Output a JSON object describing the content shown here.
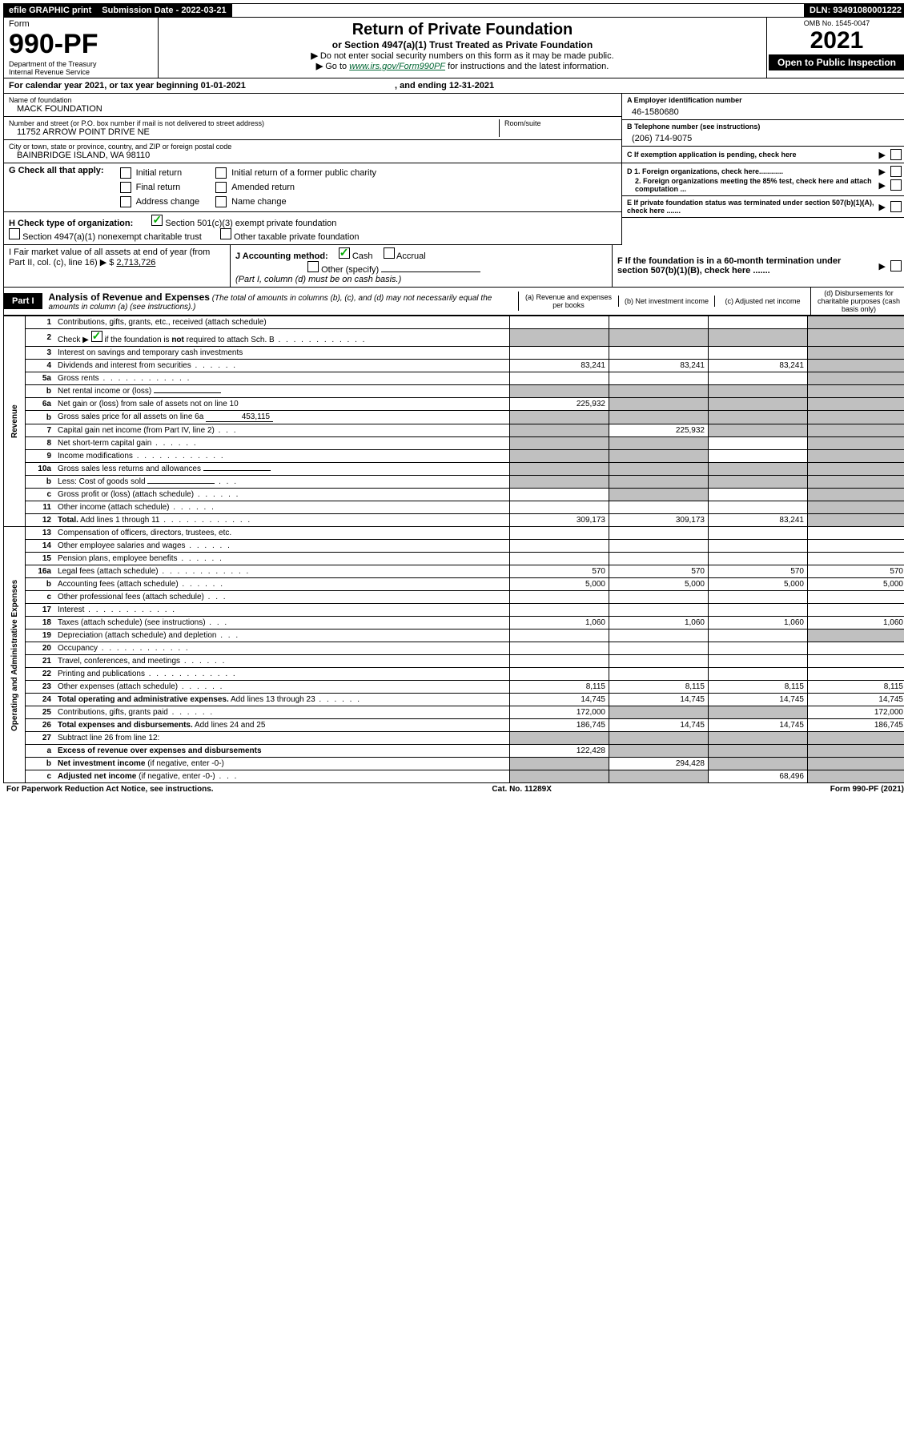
{
  "topbar": {
    "efile": "efile GRAPHIC print",
    "submission_label": "Submission Date - 2022-03-21",
    "dln": "DLN: 93491080001222"
  },
  "header": {
    "form_word": "Form",
    "form_number": "990-PF",
    "dept": "Department of the Treasury",
    "irs": "Internal Revenue Service",
    "title": "Return of Private Foundation",
    "subtitle": "or Section 4947(a)(1) Trust Treated as Private Foundation",
    "note1": "Do not enter social security numbers on this form as it may be made public.",
    "note2_pre": "Go to ",
    "note2_link": "www.irs.gov/Form990PF",
    "note2_post": " for instructions and the latest information.",
    "omb": "OMB No. 1545-0047",
    "year": "2021",
    "open": "Open to Public Inspection"
  },
  "calyear": "For calendar year 2021, or tax year beginning 01-01-2021",
  "calyear_end": ", and ending 12-31-2021",
  "foundation": {
    "name_label": "Name of foundation",
    "name": "MACK FOUNDATION",
    "addr_label": "Number and street (or P.O. box number if mail is not delivered to street address)",
    "room_label": "Room/suite",
    "addr": "11752 ARROW POINT DRIVE NE",
    "city_label": "City or town, state or province, country, and ZIP or foreign postal code",
    "city": "BAINBRIDGE ISLAND, WA  98110"
  },
  "right_info": {
    "a_label": "A Employer identification number",
    "a_val": "46-1580680",
    "b_label": "B Telephone number (see instructions)",
    "b_val": "(206) 714-9075",
    "c_label": "C If exemption application is pending, check here",
    "d1": "D 1. Foreign organizations, check here............",
    "d2": "2. Foreign organizations meeting the 85% test, check here and attach computation ...",
    "e": "E  If private foundation status was terminated under section 507(b)(1)(A), check here .......",
    "f": "F  If the foundation is in a 60-month termination under section 507(b)(1)(B), check here .......",
    "arrow": "▶"
  },
  "section_g": {
    "label": "G Check all that apply:",
    "opts": [
      "Initial return",
      "Final return",
      "Address change",
      "Initial return of a former public charity",
      "Amended return",
      "Name change"
    ]
  },
  "section_h": {
    "label": "H Check type of organization:",
    "opt1": "Section 501(c)(3) exempt private foundation",
    "opt2": "Section 4947(a)(1) nonexempt charitable trust",
    "opt3": "Other taxable private foundation"
  },
  "section_i": {
    "label": "I Fair market value of all assets at end of year (from Part II, col. (c), line 16)",
    "value_label": "▶ $",
    "value": "2,713,726"
  },
  "section_j": {
    "label": "J Accounting method:",
    "cash": "Cash",
    "accrual": "Accrual",
    "other": "Other (specify)",
    "note": "(Part I, column (d) must be on cash basis.)"
  },
  "part1": {
    "label": "Part I",
    "title": "Analysis of Revenue and Expenses",
    "note": "(The total of amounts in columns (b), (c), and (d) may not necessarily equal the amounts in column (a) (see instructions).)",
    "cols": {
      "a": "(a)   Revenue and expenses per books",
      "b": "(b)   Net investment income",
      "c": "(c)   Adjusted net income",
      "d": "(d)   Disbursements for charitable purposes (cash basis only)"
    }
  },
  "side_labels": {
    "revenue": "Revenue",
    "expenses": "Operating and Administrative Expenses"
  },
  "lines": [
    {
      "n": "1",
      "d": "Contributions, gifts, grants, etc., received (attach schedule)",
      "a": "",
      "b": "",
      "c": "",
      "dv": "",
      "dgray": true
    },
    {
      "n": "2",
      "d_html": "Check ▶ <span class='checkbox checked'></span> if the foundation is <b>not</b> required to attach Sch. B",
      "dots": true,
      "a": "",
      "b": "",
      "c": "",
      "dv": "",
      "bgray": true,
      "cgray": true,
      "dgray": true,
      "agray": true
    },
    {
      "n": "3",
      "d": "Interest on savings and temporary cash investments",
      "a": "",
      "b": "",
      "c": "",
      "dv": "",
      "dgray": true
    },
    {
      "n": "4",
      "d": "Dividends and interest from securities",
      "dots_short": true,
      "a": "83,241",
      "b": "83,241",
      "c": "83,241",
      "dv": "",
      "dgray": true
    },
    {
      "n": "5a",
      "d": "Gross rents",
      "dots": true,
      "a": "",
      "b": "",
      "c": "",
      "dv": "",
      "dgray": true
    },
    {
      "n": "b",
      "d": "Net rental income or (loss)",
      "inner": "",
      "a": "",
      "b": "",
      "c": "",
      "dv": "",
      "agray": true,
      "bgray": true,
      "cgray": true,
      "dgray": true
    },
    {
      "n": "6a",
      "d": "Net gain or (loss) from sale of assets not on line 10",
      "a": "225,932",
      "b": "",
      "c": "",
      "dv": "",
      "bgray": true,
      "cgray": true,
      "dgray": true
    },
    {
      "n": "b",
      "d": "Gross sales price for all assets on line 6a",
      "inner": "453,115",
      "a": "",
      "b": "",
      "c": "",
      "dv": "",
      "agray": true,
      "bgray": true,
      "cgray": true,
      "dgray": true
    },
    {
      "n": "7",
      "d": "Capital gain net income (from Part IV, line 2)",
      "dots_tiny": true,
      "a": "",
      "b": "225,932",
      "c": "",
      "dv": "",
      "agray": true,
      "cgray": true,
      "dgray": true
    },
    {
      "n": "8",
      "d": "Net short-term capital gain",
      "dots_short": true,
      "a": "",
      "b": "",
      "c": "",
      "dv": "",
      "agray": true,
      "bgray": true,
      "dgray": true
    },
    {
      "n": "9",
      "d": "Income modifications",
      "dots": true,
      "a": "",
      "b": "",
      "c": "",
      "dv": "",
      "agray": true,
      "bgray": true,
      "dgray": true
    },
    {
      "n": "10a",
      "d": "Gross sales less returns and allowances",
      "inner": "",
      "a": "",
      "b": "",
      "c": "",
      "dv": "",
      "agray": true,
      "bgray": true,
      "cgray": true,
      "dgray": true
    },
    {
      "n": "b",
      "d": "Less: Cost of goods sold",
      "dots_tiny": true,
      "inner": "",
      "a": "",
      "b": "",
      "c": "",
      "dv": "",
      "agray": true,
      "bgray": true,
      "cgray": true,
      "dgray": true
    },
    {
      "n": "c",
      "d": "Gross profit or (loss) (attach schedule)",
      "dots_short": true,
      "a": "",
      "b": "",
      "c": "",
      "dv": "",
      "bgray": true,
      "dgray": true
    },
    {
      "n": "11",
      "d": "Other income (attach schedule)",
      "dots_short": true,
      "a": "",
      "b": "",
      "c": "",
      "dv": "",
      "dgray": true
    },
    {
      "n": "12",
      "d": "<b>Total.</b> Add lines 1 through 11",
      "dots": true,
      "a": "309,173",
      "b": "309,173",
      "c": "83,241",
      "dv": "",
      "dgray": true
    }
  ],
  "exp_lines": [
    {
      "n": "13",
      "d": "Compensation of officers, directors, trustees, etc.",
      "a": "",
      "b": "",
      "c": "",
      "dv": ""
    },
    {
      "n": "14",
      "d": "Other employee salaries and wages",
      "dots_short": true,
      "a": "",
      "b": "",
      "c": "",
      "dv": ""
    },
    {
      "n": "15",
      "d": "Pension plans, employee benefits",
      "dots_short": true,
      "a": "",
      "b": "",
      "c": "",
      "dv": ""
    },
    {
      "n": "16a",
      "d": "Legal fees (attach schedule)",
      "dots": true,
      "a": "570",
      "b": "570",
      "c": "570",
      "dv": "570"
    },
    {
      "n": "b",
      "d": "Accounting fees (attach schedule)",
      "dots_short": true,
      "a": "5,000",
      "b": "5,000",
      "c": "5,000",
      "dv": "5,000"
    },
    {
      "n": "c",
      "d": "Other professional fees (attach schedule)",
      "dots_tiny": true,
      "a": "",
      "b": "",
      "c": "",
      "dv": ""
    },
    {
      "n": "17",
      "d": "Interest",
      "dots": true,
      "a": "",
      "b": "",
      "c": "",
      "dv": ""
    },
    {
      "n": "18",
      "d": "Taxes (attach schedule) (see instructions)",
      "dots_tiny": true,
      "a": "1,060",
      "b": "1,060",
      "c": "1,060",
      "dv": "1,060"
    },
    {
      "n": "19",
      "d": "Depreciation (attach schedule) and depletion",
      "dots_tiny": true,
      "a": "",
      "b": "",
      "c": "",
      "dv": "",
      "dgray": true
    },
    {
      "n": "20",
      "d": "Occupancy",
      "dots": true,
      "a": "",
      "b": "",
      "c": "",
      "dv": ""
    },
    {
      "n": "21",
      "d": "Travel, conferences, and meetings",
      "dots_short": true,
      "a": "",
      "b": "",
      "c": "",
      "dv": ""
    },
    {
      "n": "22",
      "d": "Printing and publications",
      "dots": true,
      "a": "",
      "b": "",
      "c": "",
      "dv": ""
    },
    {
      "n": "23",
      "d": "Other expenses (attach schedule)",
      "dots_short": true,
      "a": "8,115",
      "b": "8,115",
      "c": "8,115",
      "dv": "8,115"
    },
    {
      "n": "24",
      "d": "<b>Total operating and administrative expenses.</b> Add lines 13 through 23",
      "dots_short": true,
      "a": "14,745",
      "b": "14,745",
      "c": "14,745",
      "dv": "14,745"
    },
    {
      "n": "25",
      "d": "Contributions, gifts, grants paid",
      "dots_short": true,
      "a": "172,000",
      "b": "",
      "c": "",
      "dv": "172,000",
      "bgray": true,
      "cgray": true
    },
    {
      "n": "26",
      "d": "<b>Total expenses and disbursements.</b> Add lines 24 and 25",
      "a": "186,745",
      "b": "14,745",
      "c": "14,745",
      "dv": "186,745"
    }
  ],
  "bottom_lines": [
    {
      "n": "27",
      "d": "Subtract line 26 from line 12:",
      "a": "",
      "b": "",
      "c": "",
      "dv": "",
      "agray": true,
      "bgray": true,
      "cgray": true,
      "dgray": true
    },
    {
      "n": "a",
      "d": "<b>Excess of revenue over expenses and disbursements</b>",
      "a": "122,428",
      "b": "",
      "c": "",
      "dv": "",
      "bgray": true,
      "cgray": true,
      "dgray": true
    },
    {
      "n": "b",
      "d": "<b>Net investment income</b> (if negative, enter -0-)",
      "a": "",
      "b": "294,428",
      "c": "",
      "dv": "",
      "agray": true,
      "cgray": true,
      "dgray": true
    },
    {
      "n": "c",
      "d": "<b>Adjusted net income</b> (if negative, enter -0-)",
      "dots_tiny": true,
      "a": "",
      "b": "",
      "c": "68,496",
      "dv": "",
      "agray": true,
      "bgray": true,
      "dgray": true
    }
  ],
  "footer": {
    "left": "For Paperwork Reduction Act Notice, see instructions.",
    "mid": "Cat. No. 11289X",
    "right": "Form 990-PF (2021)"
  }
}
